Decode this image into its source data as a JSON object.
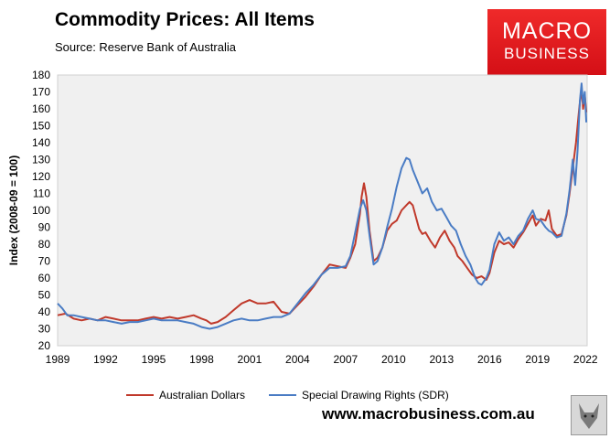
{
  "header": {
    "title": "Commodity Prices: All Items",
    "source": "Source: Reserve Bank of Australia"
  },
  "logo": {
    "line1": "MACRO",
    "line2": "BUSINESS"
  },
  "footer": {
    "website": "www.macrobusiness.com.au"
  },
  "colors": {
    "aud": "#c0392b",
    "sdr": "#4a7cc4",
    "plot_bg": "#f0f0f0"
  },
  "chart_data": {
    "type": "line",
    "title": "Commodity Prices: All Items",
    "ylabel": "Index (2008-09 = 100)",
    "xlabel": "",
    "xlim": [
      1989,
      2022.1
    ],
    "ylim": [
      20,
      180
    ],
    "xticks": [
      1989,
      1992,
      1995,
      1998,
      2001,
      2004,
      2007,
      2010,
      2013,
      2016,
      2019,
      2022
    ],
    "yticks": [
      20,
      30,
      40,
      50,
      60,
      70,
      80,
      90,
      100,
      110,
      120,
      130,
      140,
      150,
      160,
      170,
      180
    ],
    "legend": "bottom",
    "grid": false,
    "series": [
      {
        "name": "Australian Dollars",
        "color": "#c0392b",
        "points": [
          [
            1989,
            38
          ],
          [
            1989.5,
            39
          ],
          [
            1990,
            36
          ],
          [
            1990.5,
            35
          ],
          [
            1991,
            36
          ],
          [
            1991.5,
            35
          ],
          [
            1992,
            37
          ],
          [
            1992.5,
            36
          ],
          [
            1993,
            35
          ],
          [
            1993.5,
            35
          ],
          [
            1994,
            35
          ],
          [
            1994.5,
            36
          ],
          [
            1995,
            37
          ],
          [
            1995.5,
            36
          ],
          [
            1996,
            37
          ],
          [
            1996.5,
            36
          ],
          [
            1997,
            37
          ],
          [
            1997.5,
            38
          ],
          [
            1998,
            36
          ],
          [
            1998.3,
            35
          ],
          [
            1998.6,
            33
          ],
          [
            1999,
            34
          ],
          [
            1999.5,
            37
          ],
          [
            2000,
            41
          ],
          [
            2000.5,
            45
          ],
          [
            2001,
            47
          ],
          [
            2001.5,
            45
          ],
          [
            2002,
            45
          ],
          [
            2002.5,
            46
          ],
          [
            2003,
            40
          ],
          [
            2003.5,
            39
          ],
          [
            2004,
            44
          ],
          [
            2004.5,
            49
          ],
          [
            2005,
            55
          ],
          [
            2005.5,
            62
          ],
          [
            2006,
            68
          ],
          [
            2006.5,
            67
          ],
          [
            2007,
            66
          ],
          [
            2007.3,
            72
          ],
          [
            2007.6,
            80
          ],
          [
            2007.9,
            98
          ],
          [
            2008.0,
            108
          ],
          [
            2008.15,
            116
          ],
          [
            2008.3,
            108
          ],
          [
            2008.5,
            88
          ],
          [
            2008.75,
            70
          ],
          [
            2009,
            72
          ],
          [
            2009.3,
            78
          ],
          [
            2009.6,
            88
          ],
          [
            2009.9,
            92
          ],
          [
            2010.2,
            94
          ],
          [
            2010.5,
            100
          ],
          [
            2010.8,
            103
          ],
          [
            2011.0,
            105
          ],
          [
            2011.2,
            103
          ],
          [
            2011.4,
            96
          ],
          [
            2011.6,
            89
          ],
          [
            2011.8,
            86
          ],
          [
            2012.0,
            87
          ],
          [
            2012.3,
            82
          ],
          [
            2012.6,
            78
          ],
          [
            2012.9,
            84
          ],
          [
            2013.2,
            88
          ],
          [
            2013.5,
            82
          ],
          [
            2013.8,
            78
          ],
          [
            2014.0,
            73
          ],
          [
            2014.3,
            70
          ],
          [
            2014.6,
            66
          ],
          [
            2014.9,
            62
          ],
          [
            2015.2,
            60
          ],
          [
            2015.5,
            61
          ],
          [
            2015.8,
            59
          ],
          [
            2016.0,
            63
          ],
          [
            2016.3,
            75
          ],
          [
            2016.6,
            82
          ],
          [
            2016.9,
            80
          ],
          [
            2017.2,
            81
          ],
          [
            2017.5,
            78
          ],
          [
            2017.8,
            83
          ],
          [
            2018.1,
            87
          ],
          [
            2018.4,
            92
          ],
          [
            2018.7,
            97
          ],
          [
            2018.9,
            91
          ],
          [
            2019.2,
            95
          ],
          [
            2019.5,
            94
          ],
          [
            2019.7,
            100
          ],
          [
            2019.9,
            89
          ],
          [
            2020.2,
            85
          ],
          [
            2020.5,
            86
          ],
          [
            2020.8,
            97
          ],
          [
            2021.0,
            110
          ],
          [
            2021.2,
            125
          ],
          [
            2021.4,
            140
          ],
          [
            2021.6,
            160
          ],
          [
            2021.75,
            172
          ],
          [
            2021.85,
            160
          ],
          [
            2021.95,
            168
          ],
          [
            2022.05,
            158
          ]
        ]
      },
      {
        "name": "Special Drawing Rights (SDR)",
        "color": "#4a7cc4",
        "points": [
          [
            1989,
            45
          ],
          [
            1989.3,
            42
          ],
          [
            1989.6,
            38
          ],
          [
            1990,
            38
          ],
          [
            1990.5,
            37
          ],
          [
            1991,
            36
          ],
          [
            1991.5,
            35
          ],
          [
            1992,
            35
          ],
          [
            1992.5,
            34
          ],
          [
            1993,
            33
          ],
          [
            1993.5,
            34
          ],
          [
            1994,
            34
          ],
          [
            1994.5,
            35
          ],
          [
            1995,
            36
          ],
          [
            1995.5,
            35
          ],
          [
            1996,
            35
          ],
          [
            1996.5,
            35
          ],
          [
            1997,
            34
          ],
          [
            1997.5,
            33
          ],
          [
            1998,
            31
          ],
          [
            1998.5,
            30
          ],
          [
            1999,
            31
          ],
          [
            1999.5,
            33
          ],
          [
            2000,
            35
          ],
          [
            2000.5,
            36
          ],
          [
            2001,
            35
          ],
          [
            2001.5,
            35
          ],
          [
            2002,
            36
          ],
          [
            2002.5,
            37
          ],
          [
            2003,
            37
          ],
          [
            2003.5,
            39
          ],
          [
            2004,
            45
          ],
          [
            2004.5,
            51
          ],
          [
            2005,
            56
          ],
          [
            2005.5,
            62
          ],
          [
            2006,
            66
          ],
          [
            2006.5,
            66
          ],
          [
            2007,
            67
          ],
          [
            2007.3,
            73
          ],
          [
            2007.6,
            87
          ],
          [
            2007.9,
            101
          ],
          [
            2008.1,
            106
          ],
          [
            2008.3,
            100
          ],
          [
            2008.5,
            85
          ],
          [
            2008.75,
            68
          ],
          [
            2009,
            70
          ],
          [
            2009.3,
            78
          ],
          [
            2009.6,
            90
          ],
          [
            2009.9,
            101
          ],
          [
            2010.2,
            114
          ],
          [
            2010.5,
            125
          ],
          [
            2010.8,
            131
          ],
          [
            2011.0,
            130
          ],
          [
            2011.2,
            124
          ],
          [
            2011.5,
            117
          ],
          [
            2011.8,
            110
          ],
          [
            2012.1,
            113
          ],
          [
            2012.4,
            105
          ],
          [
            2012.7,
            100
          ],
          [
            2013.0,
            101
          ],
          [
            2013.3,
            96
          ],
          [
            2013.6,
            91
          ],
          [
            2013.9,
            88
          ],
          [
            2014.2,
            80
          ],
          [
            2014.5,
            73
          ],
          [
            2014.8,
            68
          ],
          [
            2015.1,
            60
          ],
          [
            2015.3,
            57
          ],
          [
            2015.5,
            56
          ],
          [
            2015.8,
            60
          ],
          [
            2016.0,
            65
          ],
          [
            2016.3,
            80
          ],
          [
            2016.6,
            87
          ],
          [
            2016.9,
            82
          ],
          [
            2017.2,
            84
          ],
          [
            2017.5,
            80
          ],
          [
            2017.8,
            85
          ],
          [
            2018.1,
            88
          ],
          [
            2018.4,
            95
          ],
          [
            2018.7,
            100
          ],
          [
            2018.9,
            95
          ],
          [
            2019.2,
            94
          ],
          [
            2019.5,
            90
          ],
          [
            2019.7,
            88
          ],
          [
            2019.9,
            87
          ],
          [
            2020.2,
            84
          ],
          [
            2020.5,
            85
          ],
          [
            2020.8,
            98
          ],
          [
            2021.0,
            112
          ],
          [
            2021.2,
            130
          ],
          [
            2021.35,
            115
          ],
          [
            2021.5,
            135
          ],
          [
            2021.65,
            165
          ],
          [
            2021.75,
            175
          ],
          [
            2021.85,
            163
          ],
          [
            2021.95,
            170
          ],
          [
            2022.05,
            152
          ]
        ]
      }
    ]
  }
}
